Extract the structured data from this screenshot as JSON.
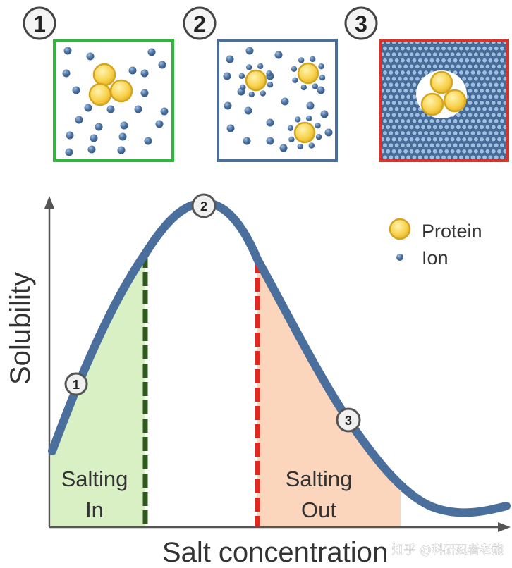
{
  "panels": [
    {
      "number": "1",
      "border_color": "#2db83a"
    },
    {
      "number": "2",
      "border_color": "#4a6f9c"
    },
    {
      "number": "3",
      "border_color": "#d9322a"
    }
  ],
  "legend": {
    "protein": "Protein",
    "ion": "Ion"
  },
  "axes": {
    "ylabel": "Solubility",
    "xlabel": "Salt concentration"
  },
  "curve_markers": [
    "1",
    "2",
    "3"
  ],
  "regions": {
    "salting_in": {
      "line1": "Salting",
      "line2": "In",
      "color": "#d8f0c4",
      "line_color": "#2f5a1e"
    },
    "salting_out": {
      "line1": "Salting",
      "line2": "Out",
      "color": "#fbd6bd",
      "line_color": "#e0281e"
    }
  },
  "colors": {
    "curve": "#4a6f9c",
    "protein": "#f7d149",
    "protein_edge": "#d4a520",
    "ion": "#4a6f9c"
  },
  "watermark": "知乎 @科研忍者老熊"
}
